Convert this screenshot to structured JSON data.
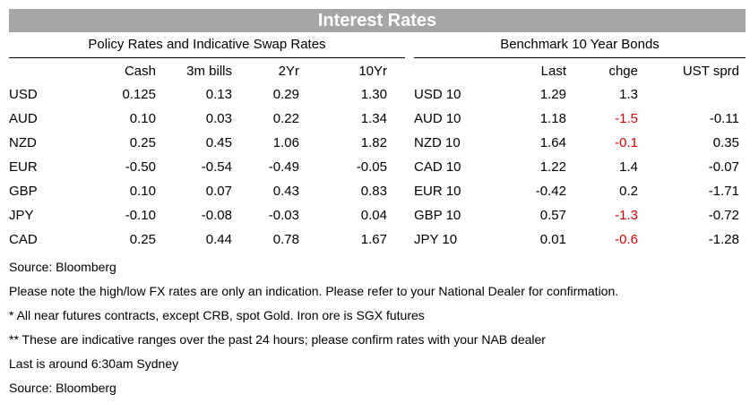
{
  "title": "Interest Rates",
  "policy": {
    "title": "Policy Rates and Indicative Swap Rates",
    "headers": [
      "",
      "Cash",
      "3m bills",
      "2Yr",
      "10Yr"
    ],
    "rows": [
      [
        "USD",
        "0.125",
        "0.13",
        "0.29",
        "1.30"
      ],
      [
        "AUD",
        "0.10",
        "0.03",
        "0.22",
        "1.34"
      ],
      [
        "NZD",
        "0.25",
        "0.45",
        "1.06",
        "1.82"
      ],
      [
        "EUR",
        "-0.50",
        "-0.54",
        "-0.49",
        "-0.05"
      ],
      [
        "GBP",
        "0.10",
        "0.07",
        "0.43",
        "0.83"
      ],
      [
        "JPY",
        "-0.10",
        "-0.08",
        "-0.03",
        "0.04"
      ],
      [
        "CAD",
        "0.25",
        "0.44",
        "0.78",
        "1.67"
      ]
    ]
  },
  "bonds": {
    "title": "Benchmark 10 Year Bonds",
    "headers": [
      "",
      "Last",
      "chge",
      "UST sprd"
    ],
    "rows": [
      [
        "USD 10",
        "1.29",
        "1.3",
        ""
      ],
      [
        "AUD 10",
        "1.18",
        "-1.5",
        "-0.11"
      ],
      [
        "NZD 10",
        "1.64",
        "-0.1",
        "0.35"
      ],
      [
        "CAD 10",
        "1.22",
        "1.4",
        "-0.07"
      ],
      [
        "EUR 10",
        "-0.42",
        "0.2",
        "-1.71"
      ],
      [
        "GBP 10",
        "0.57",
        "-1.3",
        "-0.72"
      ],
      [
        "JPY 10",
        "0.01",
        "-0.6",
        "-1.28"
      ]
    ],
    "negative_color": "#e00000"
  },
  "notes": [
    "Source: Bloomberg",
    "Please note the high/low FX rates are only an indication. Please refer to your National Dealer for confirmation.",
    "* All near futures contracts, except CRB, spot Gold.  Iron ore is SGX futures",
    "** These are indicative ranges over the past 24 hours; please confirm rates with your NAB dealer",
    "Last is around 6:30am Sydney",
    "Source: Bloomberg"
  ]
}
